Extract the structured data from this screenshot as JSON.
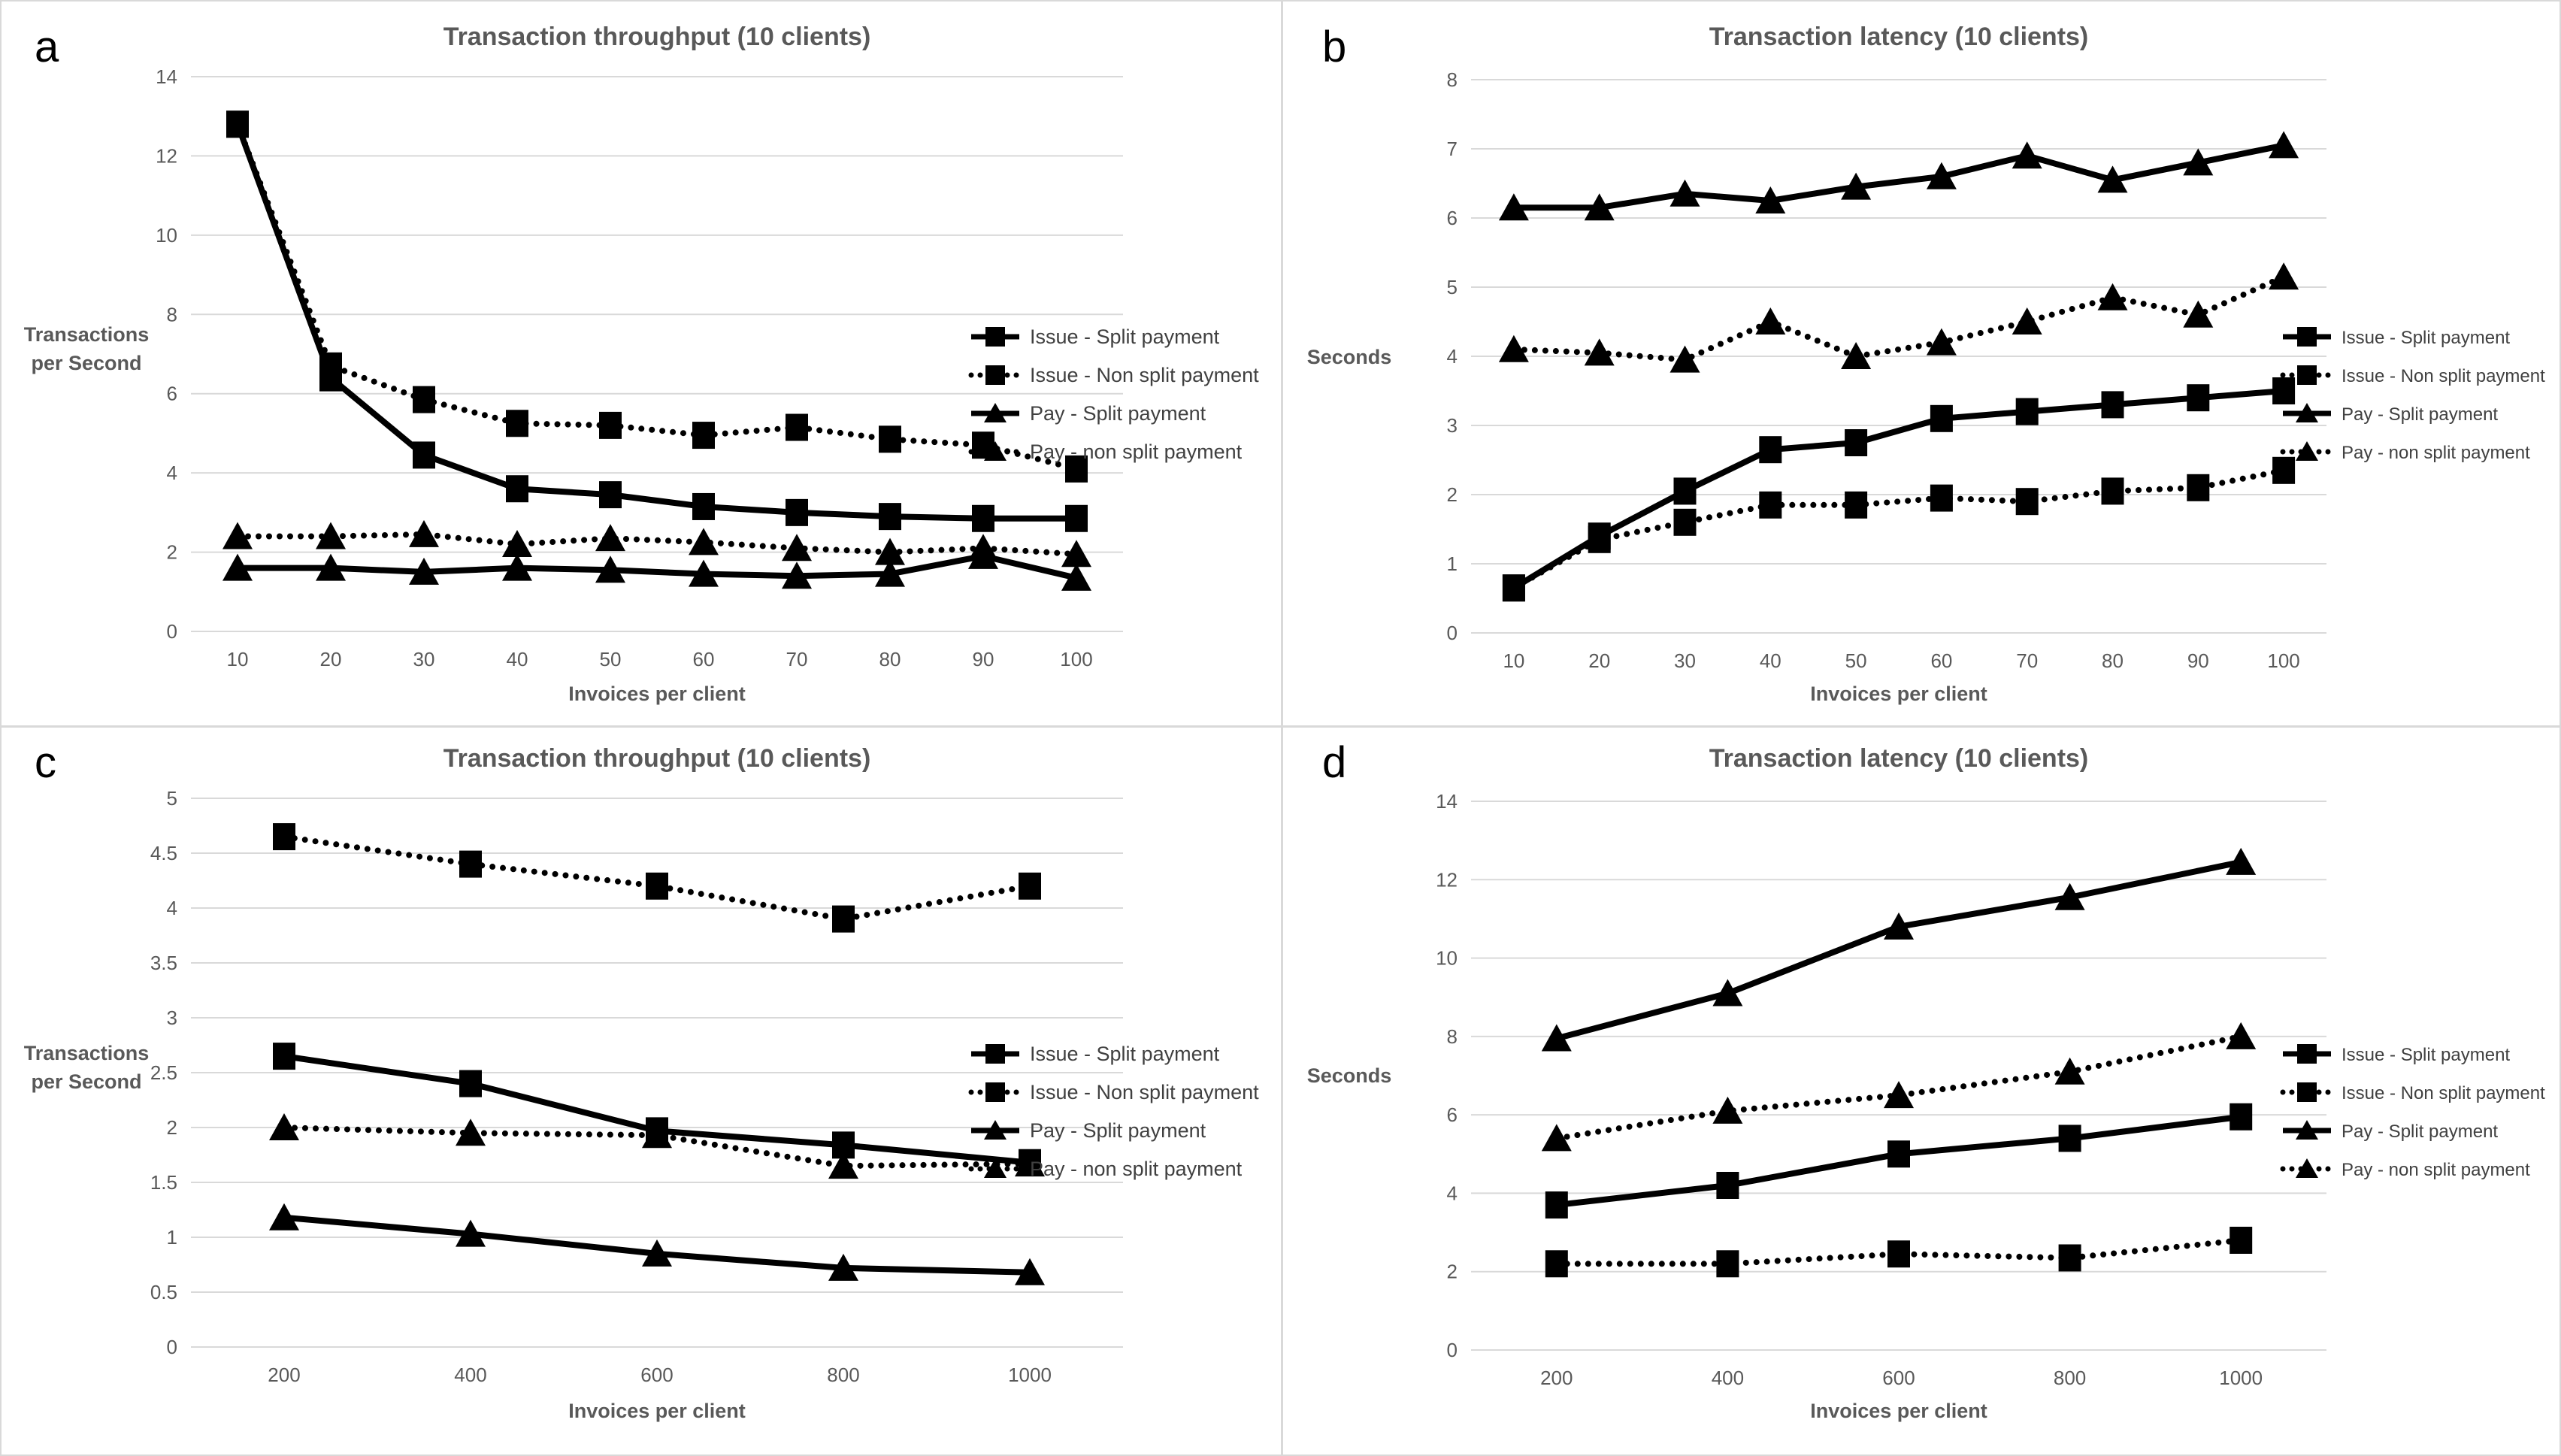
{
  "colors": {
    "series": "#000000",
    "grid": "#d9d9d9",
    "text": "#595959",
    "legend_text": "#404040",
    "background": "#ffffff",
    "divider": "#d9d9d9"
  },
  "chart_data": [
    {
      "type": "line",
      "panel_letter": "a",
      "title": "Transaction throughput (10 clients)",
      "xlabel": "Invoices per client",
      "ylabel_lines": [
        "Transactions",
        "per Second"
      ],
      "x": [
        10,
        20,
        30,
        40,
        50,
        60,
        70,
        80,
        90,
        100
      ],
      "ylim": [
        0,
        14
      ],
      "ytick_step": 2,
      "grid": true,
      "legend_position": "right",
      "series": [
        {
          "name": "Issue - Split payment",
          "marker": "square",
          "line": "solid",
          "values": [
            12.8,
            6.4,
            4.45,
            3.6,
            3.45,
            3.15,
            3.0,
            2.9,
            2.85,
            2.85
          ]
        },
        {
          "name": "Issue - Non split payment",
          "marker": "square",
          "line": "dotted",
          "values": [
            12.8,
            6.7,
            5.85,
            5.25,
            5.2,
            4.95,
            5.15,
            4.85,
            4.7,
            4.1
          ]
        },
        {
          "name": "Pay - Split payment",
          "marker": "triangle",
          "line": "solid",
          "values": [
            1.6,
            1.6,
            1.5,
            1.6,
            1.55,
            1.45,
            1.4,
            1.45,
            1.9,
            1.35
          ]
        },
        {
          "name": "Pay - non split payment",
          "marker": "triangle",
          "line": "dotted",
          "values": [
            2.4,
            2.4,
            2.45,
            2.2,
            2.35,
            2.25,
            2.1,
            2.0,
            2.1,
            1.95
          ]
        }
      ]
    },
    {
      "type": "line",
      "panel_letter": "b",
      "title": "Transaction latency (10 clients)",
      "xlabel": "Invoices per client",
      "ylabel_lines": [
        "Seconds"
      ],
      "x": [
        10,
        20,
        30,
        40,
        50,
        60,
        70,
        80,
        90,
        100
      ],
      "ylim": [
        0,
        8
      ],
      "ytick_step": 1,
      "grid": true,
      "legend_position": "right",
      "series": [
        {
          "name": "Issue - Split payment",
          "marker": "square",
          "line": "solid",
          "values": [
            0.65,
            1.4,
            2.05,
            2.65,
            2.75,
            3.1,
            3.2,
            3.3,
            3.4,
            3.5
          ]
        },
        {
          "name": "Issue - Non split payment",
          "marker": "square",
          "line": "dotted",
          "values": [
            0.65,
            1.35,
            1.6,
            1.85,
            1.85,
            1.95,
            1.9,
            2.05,
            2.1,
            2.35
          ]
        },
        {
          "name": "Pay - Split payment",
          "marker": "triangle",
          "line": "solid",
          "values": [
            6.15,
            6.15,
            6.35,
            6.25,
            6.45,
            6.6,
            6.9,
            6.55,
            6.8,
            7.05
          ]
        },
        {
          "name": "Pay - non split payment",
          "marker": "triangle",
          "line": "dotted",
          "values": [
            4.1,
            4.05,
            3.95,
            4.5,
            4.0,
            4.2,
            4.5,
            4.85,
            4.6,
            5.15
          ]
        }
      ]
    },
    {
      "type": "line",
      "panel_letter": "c",
      "title": "Transaction throughput (10 clients)",
      "xlabel": "Invoices per client",
      "ylabel_lines": [
        "Transactions",
        "per Second"
      ],
      "x": [
        200,
        400,
        600,
        800,
        1000
      ],
      "ylim": [
        0,
        5
      ],
      "ytick_step": 0.5,
      "grid": true,
      "legend_position": "right",
      "series": [
        {
          "name": "Issue - Split payment",
          "marker": "square",
          "line": "solid",
          "values": [
            2.65,
            2.4,
            1.97,
            1.84,
            1.68
          ]
        },
        {
          "name": "Issue - Non split payment",
          "marker": "square",
          "line": "dotted",
          "values": [
            4.65,
            4.4,
            4.2,
            3.9,
            4.2
          ]
        },
        {
          "name": "Pay - Split payment",
          "marker": "triangle",
          "line": "solid",
          "values": [
            1.18,
            1.03,
            0.85,
            0.72,
            0.68
          ]
        },
        {
          "name": "Pay - non split payment",
          "marker": "triangle",
          "line": "dotted",
          "values": [
            2.0,
            1.95,
            1.93,
            1.65,
            1.67
          ]
        }
      ]
    },
    {
      "type": "line",
      "panel_letter": "d",
      "title": "Transaction latency (10 clients)",
      "xlabel": "Invoices per client",
      "ylabel_lines": [
        "Seconds"
      ],
      "x": [
        200,
        400,
        600,
        800,
        1000
      ],
      "ylim": [
        0,
        14
      ],
      "ytick_step": 2,
      "grid": true,
      "legend_position": "right",
      "series": [
        {
          "name": "Issue - Split payment",
          "marker": "square",
          "line": "solid",
          "values": [
            3.7,
            4.2,
            5.0,
            5.4,
            5.95
          ]
        },
        {
          "name": "Issue - Non split payment",
          "marker": "square",
          "line": "dotted",
          "values": [
            2.2,
            2.2,
            2.45,
            2.35,
            2.8
          ]
        },
        {
          "name": "Pay - Split payment",
          "marker": "triangle",
          "line": "solid",
          "values": [
            7.95,
            9.1,
            10.8,
            11.55,
            12.45
          ]
        },
        {
          "name": "Pay - non split payment",
          "marker": "triangle",
          "line": "dotted",
          "values": [
            5.4,
            6.1,
            6.5,
            7.1,
            8.0
          ]
        }
      ]
    }
  ]
}
